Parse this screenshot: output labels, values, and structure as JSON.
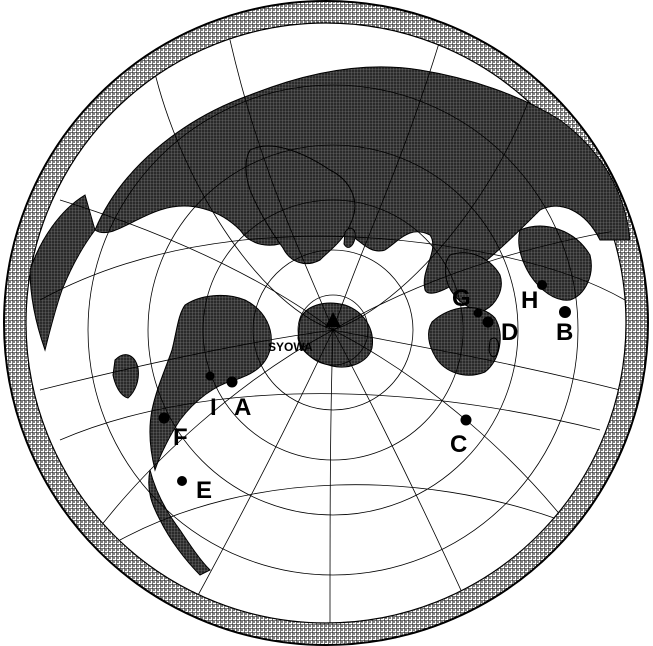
{
  "map": {
    "station": {
      "label": "SYOWA"
    },
    "sites": [
      {
        "id": "A",
        "label": "A"
      },
      {
        "id": "B",
        "label": "B"
      },
      {
        "id": "C",
        "label": "C"
      },
      {
        "id": "D",
        "label": "D"
      },
      {
        "id": "E",
        "label": "E"
      },
      {
        "id": "F",
        "label": "F"
      },
      {
        "id": "G",
        "label": "G"
      },
      {
        "id": "H",
        "label": "H"
      },
      {
        "id": "I",
        "label": "I"
      }
    ],
    "colors": {
      "land": "#1a1a1a",
      "ocean": "#ffffff",
      "graticule": "#000000",
      "outer_ring_hatch": "#444444"
    }
  }
}
